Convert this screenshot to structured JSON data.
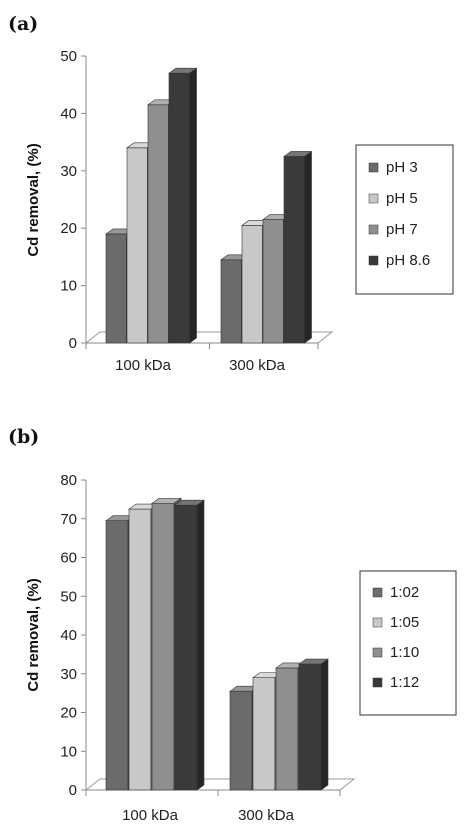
{
  "chart_data": [
    {
      "type": "bar",
      "panel": "(a)",
      "ylabel": "Cd removal, (%)",
      "ylim": [
        0,
        50
      ],
      "yticks": [
        0,
        10,
        20,
        30,
        40,
        50
      ],
      "categories": [
        "100 kDa",
        "300 kDa"
      ],
      "series": [
        {
          "name": "pH 3",
          "color": "#6b6b6b",
          "values": [
            19,
            14.5
          ]
        },
        {
          "name": "pH 5",
          "color": "#c8c8c8",
          "values": [
            34,
            20.5
          ]
        },
        {
          "name": "pH 7",
          "color": "#8f8f8f",
          "values": [
            41.5,
            21.5
          ]
        },
        {
          "name": "pH 8.6",
          "color": "#3a3a3a",
          "values": [
            47,
            32.5
          ]
        }
      ],
      "legend": "right",
      "grid": false,
      "style": "3d"
    },
    {
      "type": "bar",
      "panel": "(b)",
      "ylabel": "Cd removal, (%)",
      "ylim": [
        0,
        80
      ],
      "yticks": [
        0,
        10,
        20,
        30,
        40,
        50,
        60,
        70,
        80
      ],
      "categories": [
        "100 kDa",
        "300 kDa"
      ],
      "series": [
        {
          "name": "1:02",
          "color": "#6b6b6b",
          "values": [
            69.5,
            25.5
          ]
        },
        {
          "name": "1:05",
          "color": "#c8c8c8",
          "values": [
            72.5,
            29
          ]
        },
        {
          "name": "1:10",
          "color": "#8f8f8f",
          "values": [
            74,
            31.5
          ]
        },
        {
          "name": "1:12",
          "color": "#3a3a3a",
          "values": [
            73.5,
            32.5
          ]
        }
      ],
      "legend": "right",
      "grid": false,
      "style": "3d"
    }
  ]
}
